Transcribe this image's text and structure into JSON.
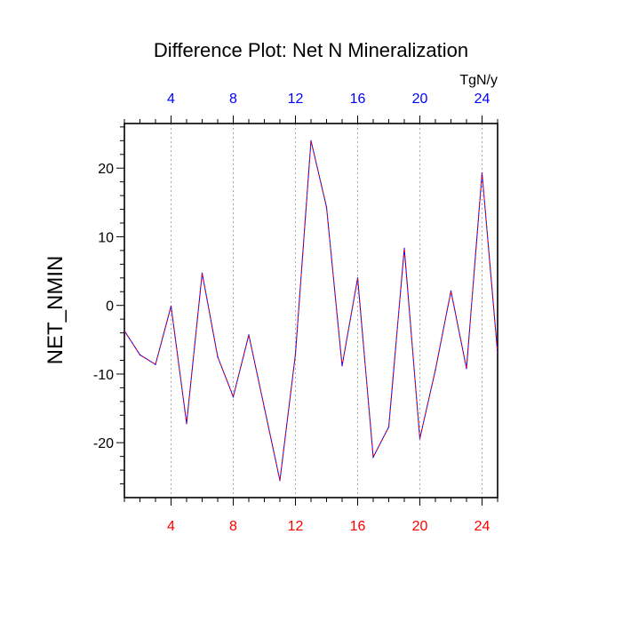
{
  "chart_data": {
    "type": "line",
    "title": "Difference Plot: Net N Mineralization",
    "units_label": "TgN/y",
    "ylabel": "NET_NMIN",
    "xlabel": "",
    "xlim": [
      1,
      25
    ],
    "ylim": [
      -28,
      26.5
    ],
    "x_ticks": [
      4,
      8,
      12,
      16,
      20,
      24
    ],
    "y_ticks": [
      20,
      10,
      0,
      -10,
      -20
    ],
    "y_tick_labels": [
      "20",
      "10",
      "0",
      "-10",
      "-20"
    ],
    "grid": "vertical-dotted",
    "colors": {
      "top_ticks": "#0000ff",
      "bottom_ticks": "#ff0000",
      "line_a": "#0000ff",
      "line_b": "#ff0000",
      "axis": "#000000",
      "grid": "#aaaaaa"
    },
    "series": [
      {
        "name": "difference",
        "x": [
          1,
          2,
          3,
          4,
          5,
          6,
          7,
          8,
          9,
          10,
          11,
          12,
          13,
          14,
          15,
          16,
          17,
          18,
          19,
          20,
          21,
          22,
          23,
          24,
          25
        ],
        "values": [
          -3.7,
          -7.2,
          -8.6,
          -0.1,
          -17.2,
          4.7,
          -7.5,
          -13.3,
          -4.3,
          -14.9,
          -25.5,
          -7.1,
          24.0,
          14.3,
          -8.8,
          4.0,
          -22.1,
          -17.7,
          8.3,
          -19.4,
          -9.4,
          2.1,
          -9.2,
          19.3,
          -7.0
        ]
      }
    ]
  }
}
